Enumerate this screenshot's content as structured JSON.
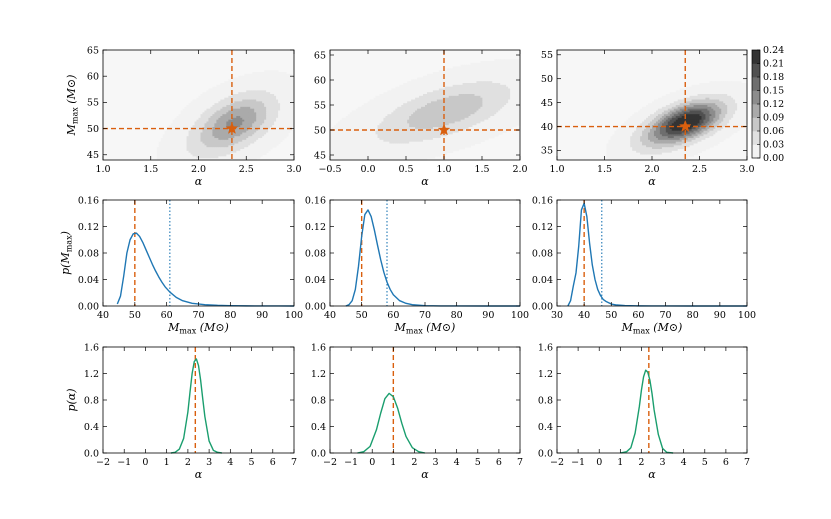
{
  "colors": {
    "truth": "#d95f0e",
    "density": "#1f77b4",
    "alpha_curve": "#1a9e6e",
    "contour_levels": [
      "#f2f2f2",
      "#e0e0e0",
      "#c8c8c8",
      "#aaaaaa",
      "#8c8c8c",
      "#6e6e6e",
      "#505050",
      "#333333"
    ]
  },
  "chart_data": [
    {
      "type": "heatmap",
      "panel": "contour-1",
      "xlabel": "α",
      "ylabel": "M",
      "ylabel_sub": "max",
      "ylabel_unit": "(M⊙)",
      "xlim": [
        1.0,
        3.0
      ],
      "ylim": [
        44,
        65
      ],
      "xticks": [
        "1.0",
        "1.5",
        "2.0",
        "2.5",
        "3.0"
      ],
      "yticks": [
        "45",
        "50",
        "55",
        "60",
        "65"
      ],
      "truth": {
        "x": 2.35,
        "y": 50
      },
      "peak": {
        "x": 2.3,
        "y": 50.0,
        "sx": 0.3,
        "sy": 4.0,
        "rho": 0.55,
        "amp": 0.12
      }
    },
    {
      "type": "heatmap",
      "panel": "contour-2",
      "xlabel": "α",
      "xlim": [
        -0.5,
        2.0
      ],
      "ylim": [
        44,
        66
      ],
      "xticks": [
        "−0.5",
        "0.0",
        "0.5",
        "1.0",
        "1.5",
        "2.0"
      ],
      "yticks": [
        "45",
        "50",
        "55",
        "60",
        "65"
      ],
      "truth": {
        "x": 1.0,
        "y": 50
      },
      "peak": {
        "x": 0.85,
        "y": 52.5,
        "sx": 0.65,
        "sy": 4.5,
        "rho": 0.65,
        "amp": 0.08
      }
    },
    {
      "type": "heatmap",
      "panel": "contour-3",
      "xlabel": "α",
      "xlim": [
        1.0,
        3.0
      ],
      "ylim": [
        33,
        56
      ],
      "xticks": [
        "1.0",
        "1.5",
        "2.0",
        "2.5",
        "3.0"
      ],
      "yticks": [
        "35",
        "40",
        "45",
        "50",
        "55"
      ],
      "truth": {
        "x": 2.35,
        "y": 40
      },
      "peak": {
        "x": 2.28,
        "y": 40.0,
        "sx": 0.28,
        "sy": 3.2,
        "rho": 0.6,
        "amp": 0.24
      },
      "colorbar": {
        "min": 0.0,
        "max": 0.24,
        "ticks": [
          "0.00",
          "0.03",
          "0.06",
          "0.09",
          "0.12",
          "0.15",
          "0.18",
          "0.21",
          "0.24"
        ]
      }
    },
    {
      "type": "line",
      "panel": "mmax-1",
      "ylabel": "p(M",
      "ylabel_sub": "max",
      "ylabel_end": ")",
      "xlabel": "M",
      "xlabel_sub": "max",
      "xlabel_unit": "(M⊙)",
      "xlim": [
        40,
        100
      ],
      "ylim": [
        0,
        0.16
      ],
      "xticks": [
        "40",
        "50",
        "60",
        "70",
        "80",
        "90",
        "100"
      ],
      "yticks": [
        "0.00",
        "0.04",
        "0.08",
        "0.12",
        "0.16"
      ],
      "truth_x": 50,
      "dotted_x": 61,
      "x": [
        44.5,
        45.5,
        46.5,
        47.5,
        48.5,
        49.5,
        50.5,
        51.5,
        52.5,
        53.5,
        54.5,
        55.5,
        56.5,
        57.5,
        58.5,
        59.5,
        61,
        63,
        65,
        68,
        72,
        76,
        80,
        85,
        90,
        95,
        100
      ],
      "y": [
        0.003,
        0.015,
        0.045,
        0.08,
        0.1,
        0.109,
        0.11,
        0.105,
        0.096,
        0.085,
        0.074,
        0.063,
        0.053,
        0.044,
        0.036,
        0.029,
        0.021,
        0.013,
        0.008,
        0.004,
        0.002,
        0.001,
        0.0005,
        0.0002,
        0.0001,
        5e-05,
        2e-05
      ]
    },
    {
      "type": "line",
      "panel": "mmax-2",
      "xlabel": "M",
      "xlabel_sub": "max",
      "xlabel_unit": "(M⊙)",
      "xlim": [
        40,
        100
      ],
      "ylim": [
        0,
        0.16
      ],
      "xticks": [
        "40",
        "50",
        "60",
        "70",
        "80",
        "90",
        "100"
      ],
      "yticks": [
        "0.00",
        "0.04",
        "0.08",
        "0.12",
        "0.16"
      ],
      "truth_x": 50,
      "dotted_x": 58,
      "x": [
        45,
        46,
        47,
        48,
        49,
        50,
        51,
        52,
        53,
        54,
        55,
        56,
        57,
        58,
        59,
        60,
        62,
        64,
        66,
        70,
        75,
        80,
        90,
        100
      ],
      "y": [
        0.0,
        0.002,
        0.008,
        0.025,
        0.06,
        0.105,
        0.138,
        0.145,
        0.135,
        0.115,
        0.092,
        0.07,
        0.051,
        0.036,
        0.025,
        0.017,
        0.008,
        0.004,
        0.002,
        0.0005,
        0.0001,
        4e-05,
        1e-05,
        0.0
      ]
    },
    {
      "type": "line",
      "panel": "mmax-3",
      "xlabel": "M",
      "xlabel_sub": "max",
      "xlabel_unit": "(M⊙)",
      "xlim": [
        30,
        100
      ],
      "ylim": [
        0,
        0.16
      ],
      "xticks": [
        "30",
        "40",
        "50",
        "60",
        "70",
        "80",
        "90",
        "100"
      ],
      "yticks": [
        "0.00",
        "0.04",
        "0.08",
        "0.12",
        "0.16"
      ],
      "truth_x": 40,
      "dotted_x": 46.5,
      "x": [
        34,
        35,
        36,
        37,
        38,
        39,
        40,
        41,
        42,
        43,
        44,
        45,
        46,
        47,
        48,
        50,
        52,
        55,
        60,
        65,
        70,
        80,
        90,
        100
      ],
      "y": [
        0.0,
        0.008,
        0.03,
        0.05,
        0.09,
        0.145,
        0.155,
        0.135,
        0.095,
        0.062,
        0.04,
        0.025,
        0.016,
        0.01,
        0.007,
        0.003,
        0.0015,
        0.0006,
        0.0002,
        8e-05,
        4e-05,
        1e-05,
        0.0,
        0.0
      ]
    },
    {
      "type": "line",
      "panel": "alpha-1",
      "ylabel": "p(α)",
      "xlabel": "α",
      "xlim": [
        -2,
        7
      ],
      "ylim": [
        0,
        1.6
      ],
      "xticks": [
        "−2",
        "−1",
        "0",
        "1",
        "2",
        "3",
        "4",
        "5",
        "6",
        "7"
      ],
      "yticks": [
        "0.0",
        "0.4",
        "0.8",
        "1.2",
        "1.6"
      ],
      "truth_x": 2.35,
      "x": [
        1.2,
        1.4,
        1.6,
        1.8,
        2.0,
        2.1,
        2.2,
        2.3,
        2.4,
        2.5,
        2.6,
        2.7,
        2.8,
        3.0,
        3.2,
        3.4,
        3.6
      ],
      "y": [
        0.0,
        0.01,
        0.06,
        0.22,
        0.62,
        0.92,
        1.2,
        1.38,
        1.42,
        1.32,
        1.1,
        0.82,
        0.55,
        0.18,
        0.04,
        0.01,
        0.0
      ]
    },
    {
      "type": "line",
      "panel": "alpha-2",
      "xlabel": "α",
      "xlim": [
        -2,
        7
      ],
      "ylim": [
        0,
        1.6
      ],
      "xticks": [
        "−2",
        "−1",
        "0",
        "1",
        "2",
        "3",
        "4",
        "5",
        "6",
        "7"
      ],
      "yticks": [
        "0.0",
        "0.4",
        "0.8",
        "1.2",
        "1.6"
      ],
      "truth_x": 1.0,
      "x": [
        -0.7,
        -0.4,
        -0.1,
        0.2,
        0.4,
        0.6,
        0.8,
        1.0,
        1.2,
        1.4,
        1.6,
        1.9,
        2.2,
        2.5
      ],
      "y": [
        0.0,
        0.02,
        0.1,
        0.35,
        0.6,
        0.82,
        0.9,
        0.85,
        0.68,
        0.45,
        0.25,
        0.08,
        0.02,
        0.0
      ],
      "note": ""
    },
    {
      "type": "line",
      "panel": "alpha-3",
      "xlabel": "α",
      "xlim": [
        -2,
        7
      ],
      "ylim": [
        0,
        1.6
      ],
      "xticks": [
        "−2",
        "−1",
        "0",
        "1",
        "2",
        "3",
        "4",
        "5",
        "6",
        "7"
      ],
      "yticks": [
        "0.0",
        "0.4",
        "0.8",
        "1.2",
        "1.6"
      ],
      "truth_x": 2.35,
      "x": [
        1.0,
        1.3,
        1.5,
        1.7,
        1.9,
        2.0,
        2.1,
        2.2,
        2.3,
        2.4,
        2.5,
        2.6,
        2.8,
        3.0,
        3.2,
        3.5
      ],
      "y": [
        0.0,
        0.02,
        0.08,
        0.3,
        0.7,
        0.95,
        1.15,
        1.25,
        1.22,
        1.1,
        0.9,
        0.65,
        0.28,
        0.07,
        0.01,
        0.0
      ]
    }
  ]
}
